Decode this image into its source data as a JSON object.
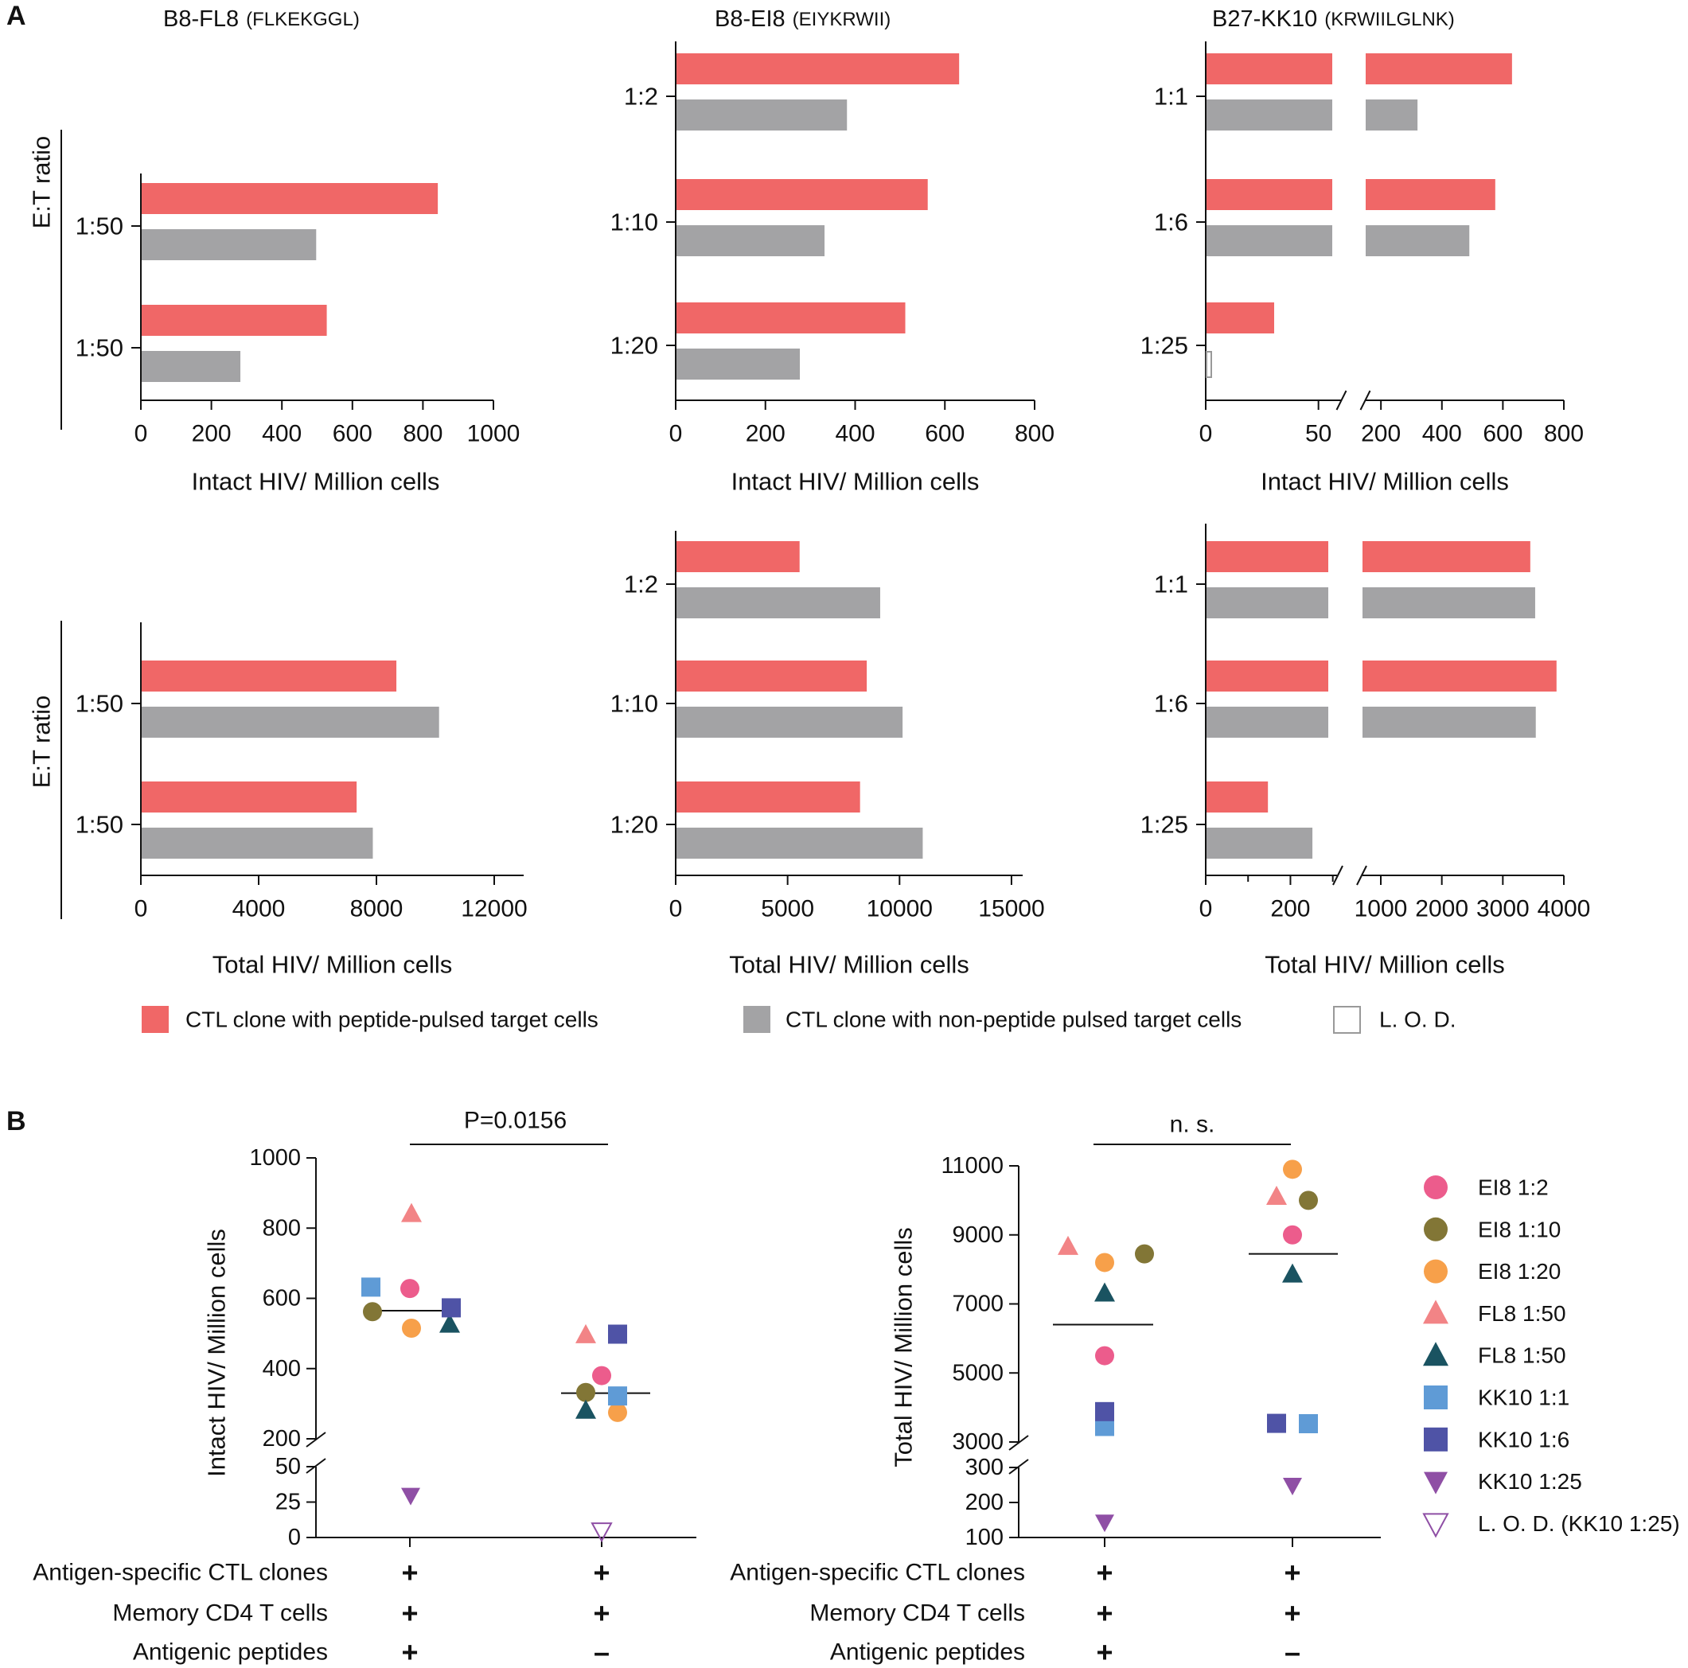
{
  "colors": {
    "red": "#F06767",
    "grey": "#A3A3A5",
    "axis": "#111111",
    "markers": {
      "EI8 1:2": "#EC5C8C",
      "EI8 1:10": "#827636",
      "EI8 1:20": "#F7A04A",
      "FL8 1:50 a": "#F28486",
      "FL8 1:50 b": "#1A5361",
      "KK10 1:1": "#5F9BD6",
      "KK10 1:6": "#4F53A6",
      "KK10 1:25": "#8F4FA5",
      "LOD": "#8F4FA5"
    }
  },
  "labels": {
    "panel_a": "A",
    "panel_b": "B",
    "a_titles": [
      {
        "main": "B8-FL8",
        "sub": "(FLKEKGGL)"
      },
      {
        "main": "B8-EI8",
        "sub": "(EIYKRWII)"
      },
      {
        "main": "B27-KK10",
        "sub": "(KRWIILGLNK)"
      }
    ],
    "et_ratio": "E:T ratio",
    "legend_a": [
      "CTL clone with peptide-pulsed target cells",
      "CTL clone with non-peptide pulsed target cells",
      "L. O. D."
    ],
    "legend_b": [
      {
        "key": "EI8 1:2",
        "label": "EI8 1:2",
        "shape": "circle"
      },
      {
        "key": "EI8 1:10",
        "label": "EI8 1:10",
        "shape": "circle"
      },
      {
        "key": "EI8 1:20",
        "label": "EI8 1:20",
        "shape": "circle"
      },
      {
        "key": "FL8 1:50 a",
        "label": "FL8 1:50",
        "shape": "triangle"
      },
      {
        "key": "FL8 1:50 b",
        "label": "FL8 1:50",
        "shape": "triangle"
      },
      {
        "key": "KK10 1:1",
        "label": "KK10 1:1",
        "shape": "square"
      },
      {
        "key": "KK10 1:6",
        "label": "KK10 1:6",
        "shape": "square"
      },
      {
        "key": "KK10 1:25",
        "label": "KK10 1:25",
        "shape": "triangle-down"
      },
      {
        "key": "LOD",
        "label": "L. O. D. (KK10 1:25)",
        "shape": "triangle-down-open"
      }
    ],
    "conditions": [
      "Antigen-specific CTL clones",
      "Memory CD4 T cells",
      "Antigenic peptides"
    ],
    "condition_signs": [
      [
        "+",
        "+"
      ],
      [
        "+",
        "+"
      ],
      [
        "+",
        "–"
      ]
    ]
  },
  "chart_data": [
    {
      "type": "bar",
      "orientation": "horizontal",
      "panel": "A",
      "id": "a-fl8-intact",
      "categories": [
        "1:50",
        "1:50"
      ],
      "series": [
        {
          "name": "CTL clone with peptide-pulsed target cells",
          "values": [
            840,
            525
          ]
        },
        {
          "name": "CTL clone with non-peptide pulsed target cells",
          "values": [
            495,
            280
          ]
        }
      ],
      "xlabel": "Intact HIV/ Million cells",
      "ylabel": "E:T ratio",
      "xlim": [
        0,
        1000
      ],
      "xticks": [
        "0",
        "200",
        "400",
        "600",
        "800",
        "1000"
      ]
    },
    {
      "type": "bar",
      "orientation": "horizontal",
      "panel": "A",
      "id": "a-ei8-intact",
      "categories": [
        "1:2",
        "1:10",
        "1:20"
      ],
      "series": [
        {
          "name": "CTL clone with peptide-pulsed target cells",
          "values": [
            630,
            560,
            510
          ]
        },
        {
          "name": "CTL clone with non-peptide pulsed target cells",
          "values": [
            380,
            330,
            275
          ]
        }
      ],
      "xlabel": "Intact HIV/ Million cells",
      "xlim": [
        0,
        800
      ],
      "xticks": [
        "0",
        "200",
        "400",
        "600",
        "800"
      ]
    },
    {
      "type": "bar",
      "orientation": "horizontal",
      "panel": "A",
      "id": "a-kk10-intact",
      "categories": [
        "1:1",
        "1:6",
        "1:25"
      ],
      "series": [
        {
          "name": "CTL clone with peptide-pulsed target cells",
          "values": [
            630,
            575,
            30
          ]
        },
        {
          "name": "CTL clone with non-peptide pulsed target cells",
          "values": [
            320,
            490,
            null
          ]
        }
      ],
      "lod": {
        "category": "1:25",
        "label": "L. O. D."
      },
      "xlabel": "Intact HIV/ Million cells",
      "axis_break": {
        "low": [
          0,
          60
        ],
        "high": [
          150,
          800
        ]
      },
      "xticks": [
        "0",
        "50",
        "200",
        "400",
        "600",
        "800"
      ]
    },
    {
      "type": "bar",
      "orientation": "horizontal",
      "panel": "A",
      "id": "a-fl8-total",
      "categories": [
        "1:50",
        "1:50"
      ],
      "series": [
        {
          "name": "CTL clone with peptide-pulsed target cells",
          "values": [
            8650,
            7300
          ]
        },
        {
          "name": "CTL clone with non-peptide pulsed target cells",
          "values": [
            10100,
            7850
          ]
        }
      ],
      "xlabel": "Total HIV/ Million cells",
      "ylabel": "E:T ratio",
      "xlim": [
        0,
        13000
      ],
      "xticks": [
        "0",
        "4000",
        "8000",
        "12000"
      ]
    },
    {
      "type": "bar",
      "orientation": "horizontal",
      "panel": "A",
      "id": "a-ei8-total",
      "categories": [
        "1:2",
        "1:10",
        "1:20"
      ],
      "series": [
        {
          "name": "CTL clone with peptide-pulsed target cells",
          "values": [
            5500,
            8500,
            8200
          ]
        },
        {
          "name": "CTL clone with non-peptide pulsed target cells",
          "values": [
            9100,
            10100,
            11000
          ]
        }
      ],
      "xlabel": "Total HIV/ Million cells",
      "xlim": [
        0,
        15500
      ],
      "xticks": [
        "0",
        "5000",
        "10000",
        "15000"
      ]
    },
    {
      "type": "bar",
      "orientation": "horizontal",
      "panel": "A",
      "id": "a-kk10-total",
      "categories": [
        "1:1",
        "1:6",
        "1:25"
      ],
      "series": [
        {
          "name": "CTL clone with peptide-pulsed target cells",
          "values": [
            3450,
            3880,
            145
          ]
        },
        {
          "name": "CTL clone with non-peptide pulsed target cells",
          "values": [
            3530,
            3540,
            250
          ]
        }
      ],
      "xlabel": "Total HIV/ Million cells",
      "axis_break": {
        "low": [
          0,
          310
        ],
        "high": [
          700,
          4000
        ]
      },
      "xticks": [
        "0",
        "200",
        "1000",
        "2000",
        "3000",
        "4000"
      ]
    },
    {
      "type": "scatter",
      "panel": "B",
      "id": "b-intact",
      "ylabel": "Intact HIV/ Million cells",
      "axis_break": {
        "low": [
          0,
          50
        ],
        "high": [
          200,
          1000
        ]
      },
      "yticks": [
        "0",
        "25",
        "50",
        "200",
        "400",
        "600",
        "800",
        "1000"
      ],
      "comparison": "P=0.0156",
      "groups": [
        {
          "median": 565,
          "points": [
            {
              "key": "EI8 1:2",
              "value": 628
            },
            {
              "key": "EI8 1:10",
              "value": 562
            },
            {
              "key": "EI8 1:20",
              "value": 515
            },
            {
              "key": "FL8 1:50 a",
              "value": 840
            },
            {
              "key": "FL8 1:50 b",
              "value": 525
            },
            {
              "key": "KK10 1:1",
              "value": 632
            },
            {
              "key": "KK10 1:6",
              "value": 573
            },
            {
              "key": "KK10 1:25",
              "value": 30
            }
          ]
        },
        {
          "median": 330,
          "points": [
            {
              "key": "EI8 1:2",
              "value": 380
            },
            {
              "key": "EI8 1:10",
              "value": 332
            },
            {
              "key": "EI8 1:20",
              "value": 275
            },
            {
              "key": "FL8 1:50 a",
              "value": 495
            },
            {
              "key": "FL8 1:50 b",
              "value": 280
            },
            {
              "key": "KK10 1:1",
              "value": 322
            },
            {
              "key": "KK10 1:6",
              "value": 498
            },
            {
              "key": "LOD",
              "value": 5
            }
          ]
        }
      ]
    },
    {
      "type": "scatter",
      "panel": "B",
      "id": "b-total",
      "ylabel": "Total HIV/ Million cells",
      "axis_break": {
        "low": [
          100,
          300
        ],
        "high": [
          3000,
          11000
        ]
      },
      "yticks": [
        "100",
        "200",
        "300",
        "3000",
        "5000",
        "7000",
        "9000",
        "11000"
      ],
      "comparison": "n. s.",
      "groups": [
        {
          "median": 6400,
          "points": [
            {
              "key": "EI8 1:2",
              "value": 5500
            },
            {
              "key": "EI8 1:10",
              "value": 8450
            },
            {
              "key": "EI8 1:20",
              "value": 8200
            },
            {
              "key": "FL8 1:50 a",
              "value": 8650
            },
            {
              "key": "FL8 1:50 b",
              "value": 7300
            },
            {
              "key": "KK10 1:1",
              "value": 3450
            },
            {
              "key": "KK10 1:6",
              "value": 3880
            },
            {
              "key": "KK10 1:25",
              "value": 145
            }
          ]
        },
        {
          "median": 8450,
          "points": [
            {
              "key": "EI8 1:2",
              "value": 9000
            },
            {
              "key": "EI8 1:10",
              "value": 10000
            },
            {
              "key": "EI8 1:20",
              "value": 10900
            },
            {
              "key": "FL8 1:50 a",
              "value": 10100
            },
            {
              "key": "FL8 1:50 b",
              "value": 7850
            },
            {
              "key": "KK10 1:1",
              "value": 3530
            },
            {
              "key": "KK10 1:6",
              "value": 3540
            },
            {
              "key": "KK10 1:25",
              "value": 250
            }
          ]
        }
      ]
    }
  ]
}
